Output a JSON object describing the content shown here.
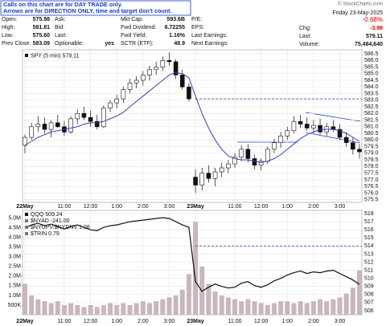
{
  "notice": [
    "Calls on this chart are for DAY TRADE only.",
    "Arrows are for DIRECTION ONLY, time and target don't count."
  ],
  "copyright": "© StockCharts.com",
  "date": "Friday 23-May-2025",
  "pct_change": "-0.68%",
  "quote": {
    "rows": [
      [
        {
          "label": "Open:",
          "value": "575.98"
        },
        {
          "label": "Ask:"
        },
        {
          "label": "Mkt Cap:",
          "value": "593.6B"
        },
        {
          "label": "P/E:"
        }
      ],
      [
        {
          "label": "High:",
          "value": "581.81"
        },
        {
          "label": "Bid:"
        },
        {
          "label": "Fwd Dividend:",
          "value": "6.72255"
        },
        {
          "label": "EPS:"
        }
      ],
      [
        {
          "label": "Low:",
          "value": "575.60"
        },
        {
          "label": "Last:"
        },
        {
          "label": "Fwd Yield:",
          "value": "1.16%"
        },
        {
          "label": "Last Earnings:"
        }
      ],
      [
        {
          "label": "Prev Close:",
          "value": "583.09"
        },
        {
          "label": "Optionable:",
          "value": "yes"
        },
        {
          "label": "SCTR (ETF):",
          "value": "48.9"
        },
        {
          "label": "Next Earnings:"
        }
      ]
    ],
    "right": [
      {
        "label": "Chg:",
        "value": "-3.98"
      },
      {
        "label": "Last:",
        "value": "579.11"
      },
      {
        "label": "Volume:",
        "value": "75,484,640"
      }
    ]
  },
  "chart_data": [
    {
      "type": "candlestick",
      "legend": "SPY (5 min) 579.11",
      "categories": [
        "22May",
        null,
        null,
        null,
        null,
        null,
        "11:00",
        null,
        null,
        null,
        "12:00",
        null,
        null,
        null,
        "1:00",
        null,
        null,
        null,
        "2:00",
        null,
        null,
        null,
        "3:00",
        null,
        null,
        null,
        "23May",
        null,
        null,
        null,
        null,
        null,
        "11:00",
        null,
        null,
        null,
        "12:00",
        null,
        null,
        null,
        "1:00",
        null,
        null,
        null,
        "2:00",
        null,
        null,
        null,
        "3:00",
        null,
        null,
        null
      ],
      "open": [
        579.6,
        580.2,
        581.0,
        581.2,
        580.8,
        581.3,
        581.0,
        580.6,
        581.6,
        582.0,
        581.7,
        581.4,
        581.0,
        582.4,
        582.8,
        583.1,
        583.8,
        584.3,
        584.5,
        584.9,
        585.3,
        585.5,
        586.0,
        585.9,
        584.9,
        584.0,
        577.2,
        576.6,
        577.5,
        577.1,
        577.6,
        577.9,
        578.2,
        578.7,
        579.3,
        578.6,
        578.1,
        578.4,
        579.3,
        579.8,
        580.3,
        580.7,
        581.4,
        581.2,
        580.9,
        581.1,
        580.6,
        581.0,
        580.8,
        580.2,
        579.8,
        579.3
      ],
      "high": [
        580.4,
        581.3,
        581.8,
        581.7,
        581.5,
        581.9,
        581.4,
        581.8,
        582.3,
        582.5,
        582.2,
        581.9,
        582.6,
        583.0,
        583.4,
        584.0,
        584.6,
        584.8,
        585.2,
        585.6,
        585.9,
        586.3,
        586.6,
        586.1,
        585.3,
        584.3,
        577.8,
        577.9,
        578.1,
        577.9,
        578.3,
        578.5,
        579.0,
        579.6,
        579.7,
        578.9,
        578.6,
        579.5,
        580.1,
        580.6,
        581.0,
        581.8,
        581.9,
        581.7,
        581.5,
        581.6,
        581.3,
        581.5,
        581.2,
        580.6,
        580.2,
        579.7
      ],
      "low": [
        579.0,
        580.0,
        580.6,
        580.5,
        580.2,
        580.9,
        580.3,
        580.5,
        581.2,
        581.5,
        581.0,
        580.8,
        580.9,
        582.1,
        582.4,
        582.8,
        583.5,
        583.9,
        584.1,
        584.5,
        584.9,
        585.2,
        585.6,
        584.6,
        583.8,
        582.9,
        576.0,
        576.2,
        576.8,
        576.5,
        577.2,
        577.5,
        577.9,
        578.4,
        578.3,
        577.8,
        577.7,
        578.2,
        579.0,
        579.4,
        580.0,
        580.5,
        580.9,
        580.7,
        580.5,
        580.4,
        580.3,
        580.6,
        580.0,
        579.5,
        578.9,
        578.6
      ],
      "close": [
        580.2,
        581.0,
        581.2,
        580.8,
        581.3,
        581.0,
        580.6,
        581.6,
        582.0,
        581.7,
        581.4,
        581.0,
        582.4,
        582.8,
        583.1,
        583.8,
        584.3,
        584.5,
        584.9,
        585.3,
        585.5,
        586.0,
        585.9,
        584.9,
        584.0,
        583.1,
        576.6,
        577.5,
        577.1,
        577.6,
        577.9,
        578.2,
        578.7,
        579.3,
        578.6,
        578.1,
        578.4,
        579.3,
        579.8,
        580.3,
        580.7,
        581.4,
        581.2,
        580.9,
        581.1,
        580.6,
        581.0,
        580.8,
        580.2,
        579.8,
        579.3,
        579.11
      ],
      "ma": [
        579.6,
        579.9,
        580.2,
        580.4,
        580.6,
        580.7,
        580.8,
        580.9,
        581.0,
        581.2,
        581.3,
        581.3,
        581.4,
        581.6,
        581.8,
        582.1,
        582.5,
        582.9,
        583.3,
        583.7,
        584.1,
        584.5,
        584.9,
        585.1,
        585.0,
        584.7,
        583.3,
        582.0,
        580.9,
        580.0,
        579.3,
        578.8,
        578.6,
        578.5,
        578.5,
        578.4,
        578.3,
        578.4,
        578.6,
        578.9,
        579.3,
        579.7,
        580.1,
        580.4,
        580.6,
        580.8,
        580.8,
        580.8,
        580.7,
        580.5,
        580.2,
        579.9
      ],
      "ma_color": "#3344bb",
      "hline": 583.1,
      "ylim": [
        575.3,
        586.8
      ],
      "yticks": [
        575.5,
        {
          "value": 576,
          "label": "576.0"
        },
        576.5,
        {
          "value": 577,
          "label": "577.0"
        },
        577.5,
        {
          "value": 578,
          "label": "578.0"
        },
        578.5,
        {
          "value": 579,
          "label": "579.0"
        },
        579.5,
        {
          "value": 580,
          "label": "580.0"
        },
        580.5,
        {
          "value": 581,
          "label": "581.0"
        },
        581.5,
        {
          "value": 582,
          "label": "582.0"
        },
        582.5,
        {
          "value": 583,
          "label": "583.0"
        },
        583.5,
        {
          "value": 584,
          "label": "584.0"
        },
        584.5,
        {
          "value": 585,
          "label": "585.0"
        },
        585.5,
        {
          "value": 586,
          "label": "586.0"
        },
        586.5
      ],
      "grid": true
    },
    {
      "type": "line",
      "legend": [
        "QQQ 509.24",
        "$NYAD -241.00",
        "$NYUPV:$NYDNV 1.08",
        "$TRIN 0.79"
      ],
      "categories": [
        "22May",
        null,
        null,
        null,
        null,
        null,
        "11:00",
        null,
        null,
        null,
        "12:00",
        null,
        null,
        null,
        "1:00",
        null,
        null,
        null,
        "2:00",
        null,
        null,
        null,
        "3:00",
        null,
        null,
        null,
        "23May",
        null,
        null,
        null,
        null,
        null,
        "11:00",
        null,
        null,
        null,
        "12:00",
        null,
        null,
        null,
        "1:00",
        null,
        null,
        null,
        "2:00",
        null,
        null,
        null,
        "3:00",
        null,
        null,
        null
      ],
      "values": [
        516.2,
        516.6,
        516.8,
        516.5,
        516.7,
        516.4,
        516.1,
        516.4,
        516.6,
        516.3,
        516.0,
        515.9,
        516.3,
        516.5,
        516.6,
        516.8,
        517.0,
        517.1,
        517.2,
        517.3,
        517.4,
        517.5,
        517.4,
        517.0,
        516.6,
        516.3,
        509.6,
        508.4,
        508.9,
        509.3,
        509.0,
        508.8,
        508.9,
        509.4,
        509.6,
        509.1,
        508.9,
        509.2,
        509.7,
        510.0,
        510.4,
        510.7,
        510.9,
        510.6,
        510.8,
        510.7,
        510.9,
        511.0,
        510.6,
        510.2,
        509.8,
        509.24
      ],
      "color": "#111111",
      "hline": 514,
      "ylim": [
        505.5,
        518.4
      ],
      "yticks": [
        506,
        507,
        508,
        509,
        510,
        511,
        512,
        513,
        514,
        515,
        516,
        517,
        518
      ],
      "volume": [
        1600000,
        1000000,
        800000,
        700000,
        600000,
        700000,
        500000,
        600000,
        500000,
        400000,
        500000,
        400000,
        500000,
        600000,
        500000,
        600000,
        500000,
        600000,
        700000,
        600000,
        700000,
        800000,
        900000,
        1000000,
        1300000,
        2100000,
        4800000,
        2500000,
        1600000,
        1200000,
        1000000,
        900000,
        800000,
        700000,
        800000,
        700000,
        600000,
        500000,
        600000,
        700000,
        700000,
        600000,
        700000,
        600000,
        700000,
        800000,
        700000,
        800000,
        900000,
        1100000,
        1400000,
        2300000
      ],
      "volume_color": "#c9b7bb",
      "vlim": [
        0,
        5400000
      ],
      "vticks": [
        {
          "value": 500000,
          "label": "500K"
        },
        {
          "value": 1000000,
          "label": "1.0M"
        },
        {
          "value": 1500000,
          "label": "1.5M"
        },
        {
          "value": 2000000,
          "label": "2.0M"
        },
        {
          "value": 2500000,
          "label": "2.5M"
        },
        {
          "value": 3000000,
          "label": "3.0M"
        },
        {
          "value": 3500000,
          "label": "3.5M"
        },
        {
          "value": 4000000,
          "label": "4.0M"
        },
        {
          "value": 4500000,
          "label": "4.5M"
        },
        {
          "value": 5000000,
          "label": "5.0M"
        }
      ],
      "grid": true
    }
  ]
}
